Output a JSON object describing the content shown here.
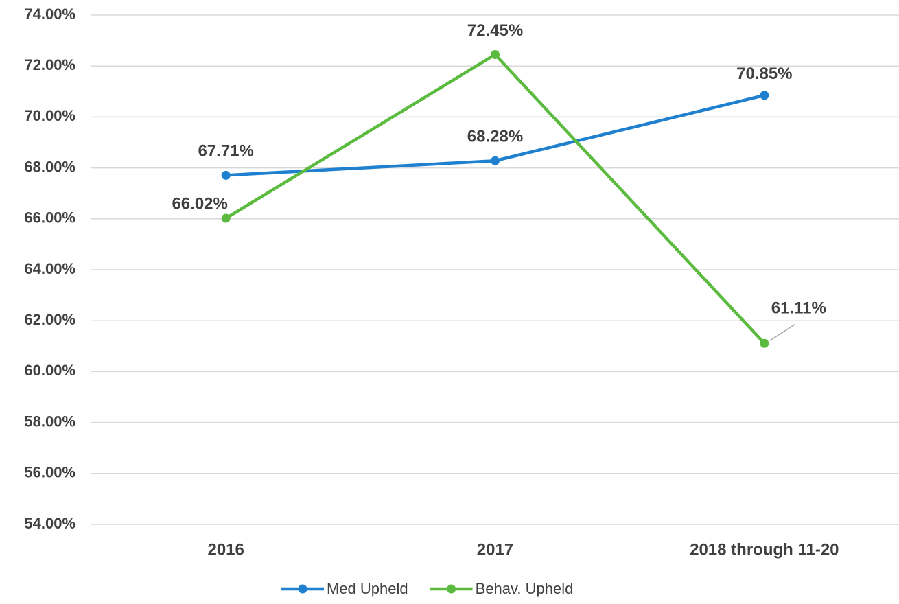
{
  "chart_data": {
    "type": "line",
    "categories": [
      "2016",
      "2017",
      "2018 through 11-20"
    ],
    "series": [
      {
        "name": "Med Upheld",
        "color": "#1f80d0",
        "values": [
          67.71,
          68.28,
          70.85
        ],
        "value_labels": [
          "67.71%",
          "68.28%",
          "70.85%"
        ]
      },
      {
        "name": "Behav. Upheld",
        "color": "#5bbb3e",
        "values": [
          66.02,
          72.45,
          61.11
        ],
        "value_labels": [
          "66.02%",
          "72.45%",
          "61.11%"
        ]
      }
    ],
    "ylim": [
      54,
      74
    ],
    "yticks": [
      {
        "value": 54,
        "label": "54.00%"
      },
      {
        "value": 56,
        "label": "56.00%"
      },
      {
        "value": 58,
        "label": "58.00%"
      },
      {
        "value": 60,
        "label": "60.00%"
      },
      {
        "value": 62,
        "label": "62.00%"
      },
      {
        "value": 64,
        "label": "64.00%"
      },
      {
        "value": 66,
        "label": "66.00%"
      },
      {
        "value": 68,
        "label": "68.00%"
      },
      {
        "value": 70,
        "label": "70.00%"
      },
      {
        "value": 72,
        "label": "72.00%"
      },
      {
        "value": 74,
        "label": "74.00%"
      }
    ],
    "grid": true,
    "legend": "bottom"
  }
}
